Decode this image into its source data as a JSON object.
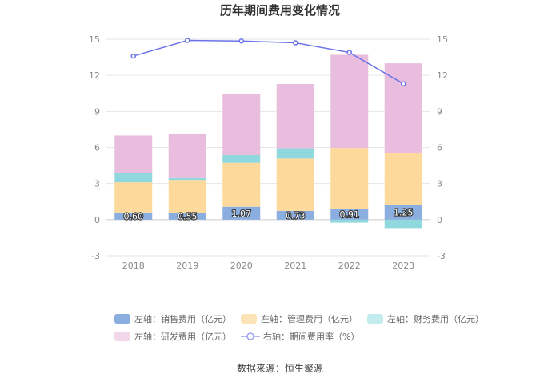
{
  "chart_data": {
    "type": "bar",
    "title": "历年期间费用变化情况",
    "categories": [
      "2018",
      "2019",
      "2020",
      "2021",
      "2022",
      "2023"
    ],
    "stacked": true,
    "series": [
      {
        "name": "左轴：销售费用（亿元）",
        "axis": "left",
        "color": "#8aaedf",
        "values": [
          0.6,
          0.55,
          1.07,
          0.73,
          0.91,
          1.25
        ],
        "labels": [
          "0.60",
          "0.55",
          "1.07",
          "0.73",
          "0.91",
          "1.25"
        ]
      },
      {
        "name": "左轴：管理费用（亿元）",
        "axis": "left",
        "color": "#fdd99b",
        "values": [
          2.5,
          2.75,
          3.65,
          4.35,
          5.05,
          4.3
        ]
      },
      {
        "name": "左轴：财务费用（亿元）",
        "axis": "left",
        "color": "#8ed8de",
        "values": [
          0.75,
          0.15,
          0.65,
          0.85,
          -0.25,
          -0.7
        ]
      },
      {
        "name": "左轴：研发费用（亿元）",
        "axis": "left",
        "color": "#e8bddd",
        "values": [
          3.15,
          3.65,
          5.05,
          5.35,
          7.75,
          7.45
        ]
      },
      {
        "name": "右轴：期间费用率（%）",
        "axis": "right",
        "type": "line",
        "color": "#6b72e8",
        "values": [
          13.6,
          14.9,
          14.85,
          14.7,
          13.9,
          11.3
        ]
      }
    ],
    "ylim_left": [
      -3,
      15
    ],
    "ylim_right": [
      -3,
      15
    ],
    "yticks_left": [
      "-3",
      "0",
      "3",
      "6",
      "9",
      "12",
      "15"
    ],
    "yticks_right": [
      "-3",
      "0",
      "3",
      "6",
      "9",
      "12",
      "15"
    ],
    "grid": true,
    "legend_position": "bottom"
  },
  "source": "数据来源：恒生聚源"
}
